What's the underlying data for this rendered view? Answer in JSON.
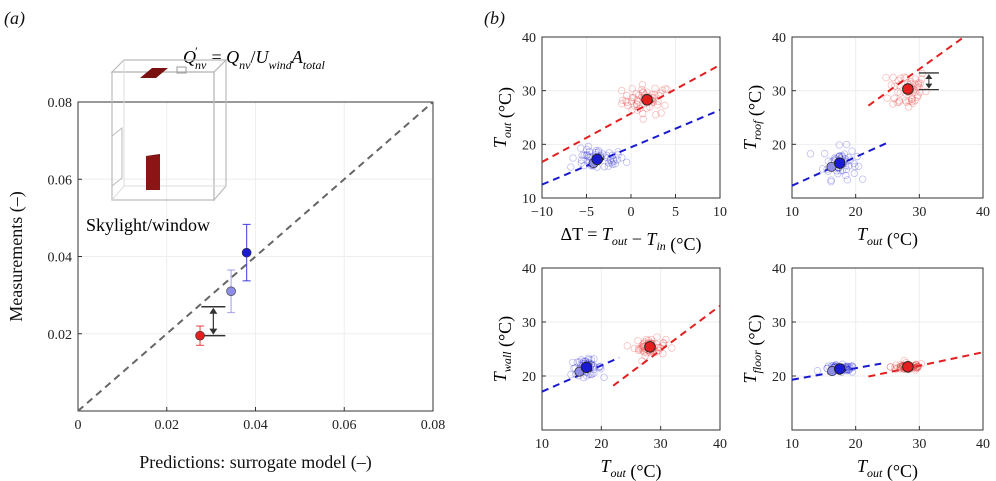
{
  "panel_labels": {
    "a": "(a)",
    "b": "(b)"
  },
  "chart_data": [
    {
      "id": "a",
      "type": "scatter",
      "title": "Q′nv = Qnv/UwindAtotal",
      "xlabel": "Predictions: surrogate model (–)",
      "ylabel": "Measurements (–)",
      "xlim": [
        0,
        0.08
      ],
      "ylim": [
        0,
        0.08
      ],
      "xticks": [
        "0",
        "0.02",
        "0.04",
        "0.06",
        "0.08"
      ],
      "yticks": [
        "0.02",
        "0.04",
        "0.06",
        "0.08"
      ],
      "grid": true,
      "inset_label": "Skylight/window",
      "points": [
        {
          "x": 0.0275,
          "y": 0.0195,
          "err": 0.0025,
          "color": "#e41f1f"
        },
        {
          "x": 0.0345,
          "y": 0.031,
          "err": 0.0055,
          "color": "#8d8de6"
        },
        {
          "x": 0.038,
          "y": 0.041,
          "err": 0.0073,
          "color": "#1a1ad0"
        }
      ],
      "reference_line": [
        [
          0,
          0
        ],
        [
          0.08,
          0.08
        ]
      ],
      "gap_marker": {
        "x": 0.0305,
        "y1": 0.0195,
        "y2": 0.027
      }
    },
    {
      "id": "b1",
      "type": "scatter",
      "xlabel": "ΔT = Tout − Tin (°C)",
      "ylabel": "Tout (°C)",
      "xlim": [
        -10,
        10
      ],
      "ylim": [
        10,
        40
      ],
      "xticks": [
        "−10",
        "−5",
        "0",
        "5",
        "10"
      ],
      "yticks": [
        "10",
        "20",
        "30",
        "40"
      ],
      "series": [
        {
          "color": "#e41f1f",
          "center": [
            1.8,
            28.3
          ],
          "spread": [
            2.3,
            2.3
          ],
          "line": [
            [
              -10,
              16.7
            ],
            [
              10,
              34.8
            ]
          ]
        },
        {
          "color": "#1a1ad0",
          "center": [
            -3.8,
            17.2
          ],
          "spread": [
            2.6,
            1.6
          ],
          "line": [
            [
              -10,
              12.5
            ],
            [
              10,
              26.4
            ]
          ]
        }
      ],
      "extra_means": [
        {
          "x": -4.2,
          "y": 16.5,
          "color": "#8d8de6"
        }
      ]
    },
    {
      "id": "b2",
      "type": "scatter",
      "xlabel": "Tout (°C)",
      "ylabel": "Troof (°C)",
      "xlim": [
        10,
        40
      ],
      "ylim": [
        10,
        40
      ],
      "xticks": [
        "10",
        "20",
        "30",
        "40"
      ],
      "yticks": [
        "20",
        "30",
        "40"
      ],
      "series": [
        {
          "color": "#e41f1f",
          "center": [
            28.2,
            30.3
          ],
          "spread": [
            2.5,
            3.3
          ],
          "line": [
            [
              22,
              27.2
            ],
            [
              37,
              40
            ]
          ]
        },
        {
          "color": "#1a1ad0",
          "center": [
            17.5,
            16.5
          ],
          "spread": [
            2.2,
            2.5
          ],
          "line": [
            [
              10,
              12.3
            ],
            [
              25,
              20.3
            ]
          ]
        }
      ],
      "extra_means": [
        {
          "x": 16.2,
          "y": 15.8,
          "color": "#8d8de6"
        }
      ],
      "gap_marker": {
        "x": 31.5,
        "y1": 30.2,
        "y2": 33.3
      }
    },
    {
      "id": "b3",
      "type": "scatter",
      "xlabel": "Tout (°C)",
      "ylabel": "Twall (°C)",
      "xlim": [
        10,
        40
      ],
      "ylim": [
        10,
        40
      ],
      "xticks": [
        "10",
        "20",
        "30",
        "40"
      ],
      "yticks": [
        "20",
        "30",
        "40"
      ],
      "series": [
        {
          "color": "#e41f1f",
          "center": [
            28.2,
            25.4
          ],
          "spread": [
            2.2,
            1.3
          ],
          "line": [
            [
              22,
              18.2
            ],
            [
              40,
              33.0
            ]
          ]
        },
        {
          "color": "#1a1ad0",
          "center": [
            17.5,
            21.6
          ],
          "spread": [
            2.2,
            1.2
          ],
          "line": [
            [
              10,
              17.1
            ],
            [
              23,
              23.4
            ]
          ]
        }
      ],
      "extra_means": [
        {
          "x": 16.3,
          "y": 20.8,
          "color": "#8d8de6"
        }
      ]
    },
    {
      "id": "b4",
      "type": "scatter",
      "xlabel": "Tout (°C)",
      "ylabel": "Tfloor (°C)",
      "xlim": [
        10,
        40
      ],
      "ylim": [
        10,
        40
      ],
      "xticks": [
        "10",
        "20",
        "30",
        "40"
      ],
      "yticks": [
        "20",
        "30",
        "40"
      ],
      "series": [
        {
          "color": "#e41f1f",
          "center": [
            28.2,
            21.7
          ],
          "spread": [
            2.2,
            0.6
          ],
          "line": [
            [
              22,
              19.9
            ],
            [
              40,
              24.4
            ]
          ]
        },
        {
          "color": "#1a1ad0",
          "center": [
            17.5,
            21.3
          ],
          "spread": [
            2.2,
            0.6
          ],
          "line": [
            [
              10,
              19.3
            ],
            [
              24,
              22.3
            ]
          ]
        }
      ],
      "extra_means": [
        {
          "x": 16.3,
          "y": 20.9,
          "color": "#8d8de6"
        }
      ]
    }
  ]
}
